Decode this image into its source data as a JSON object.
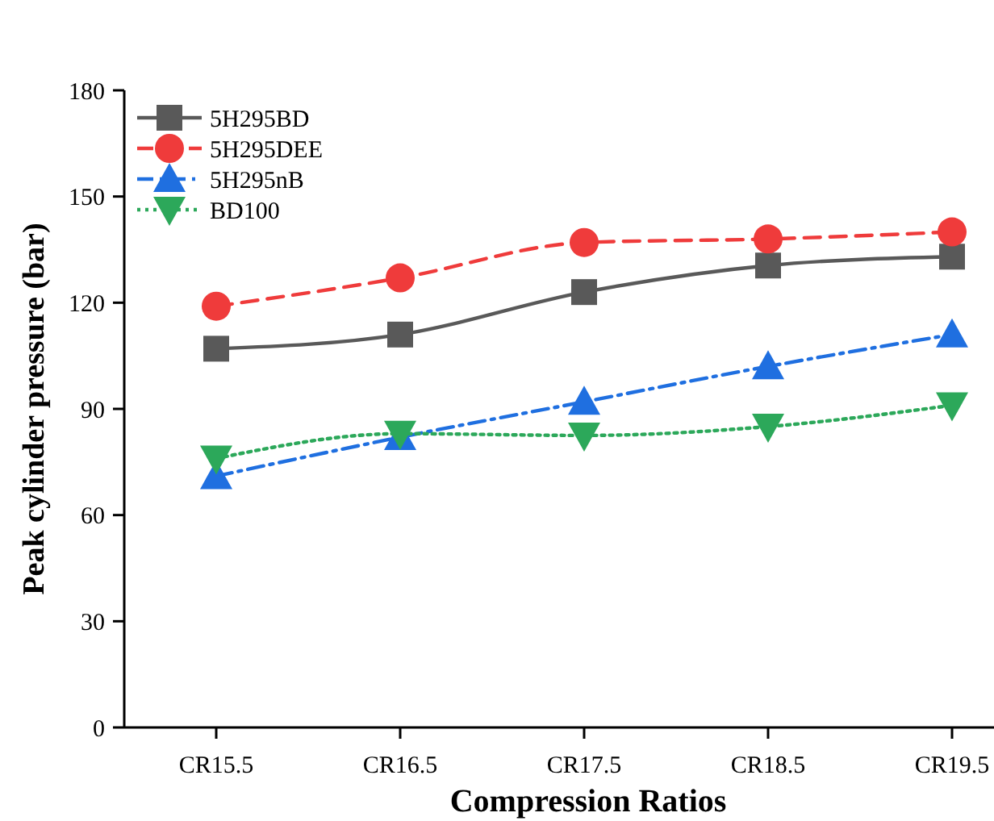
{
  "chart_data": {
    "type": "line",
    "xlabel": "Compression Ratios",
    "ylabel": "Peak cylinder pressure (bar)",
    "categories": [
      "CR15.5",
      "CR16.5",
      "CR17.5",
      "CR18.5",
      "CR19.5"
    ],
    "ylim": [
      0,
      180
    ],
    "yticks": [
      0,
      30,
      60,
      90,
      120,
      150,
      180
    ],
    "grid": false,
    "legend": "top left",
    "series": [
      {
        "name": "5H295BD",
        "color": "#595959",
        "values": [
          107,
          111,
          123,
          130.5,
          133
        ],
        "marker": "square",
        "line_style": "solid"
      },
      {
        "name": "5H295DEE",
        "color": "#ef3b3b",
        "values": [
          119,
          127,
          137,
          138,
          140
        ],
        "marker": "circle",
        "line_style": "dashed"
      },
      {
        "name": "5H295nB",
        "color": "#1f6fe0",
        "values": [
          71,
          82,
          92,
          102,
          111
        ],
        "marker": "triangle",
        "line_style": "dashdot"
      },
      {
        "name": "BD100",
        "color": "#2ca85a",
        "values": [
          76,
          83,
          82.5,
          85,
          91
        ],
        "marker": "triangle-down",
        "line_style": "dotted"
      }
    ]
  }
}
